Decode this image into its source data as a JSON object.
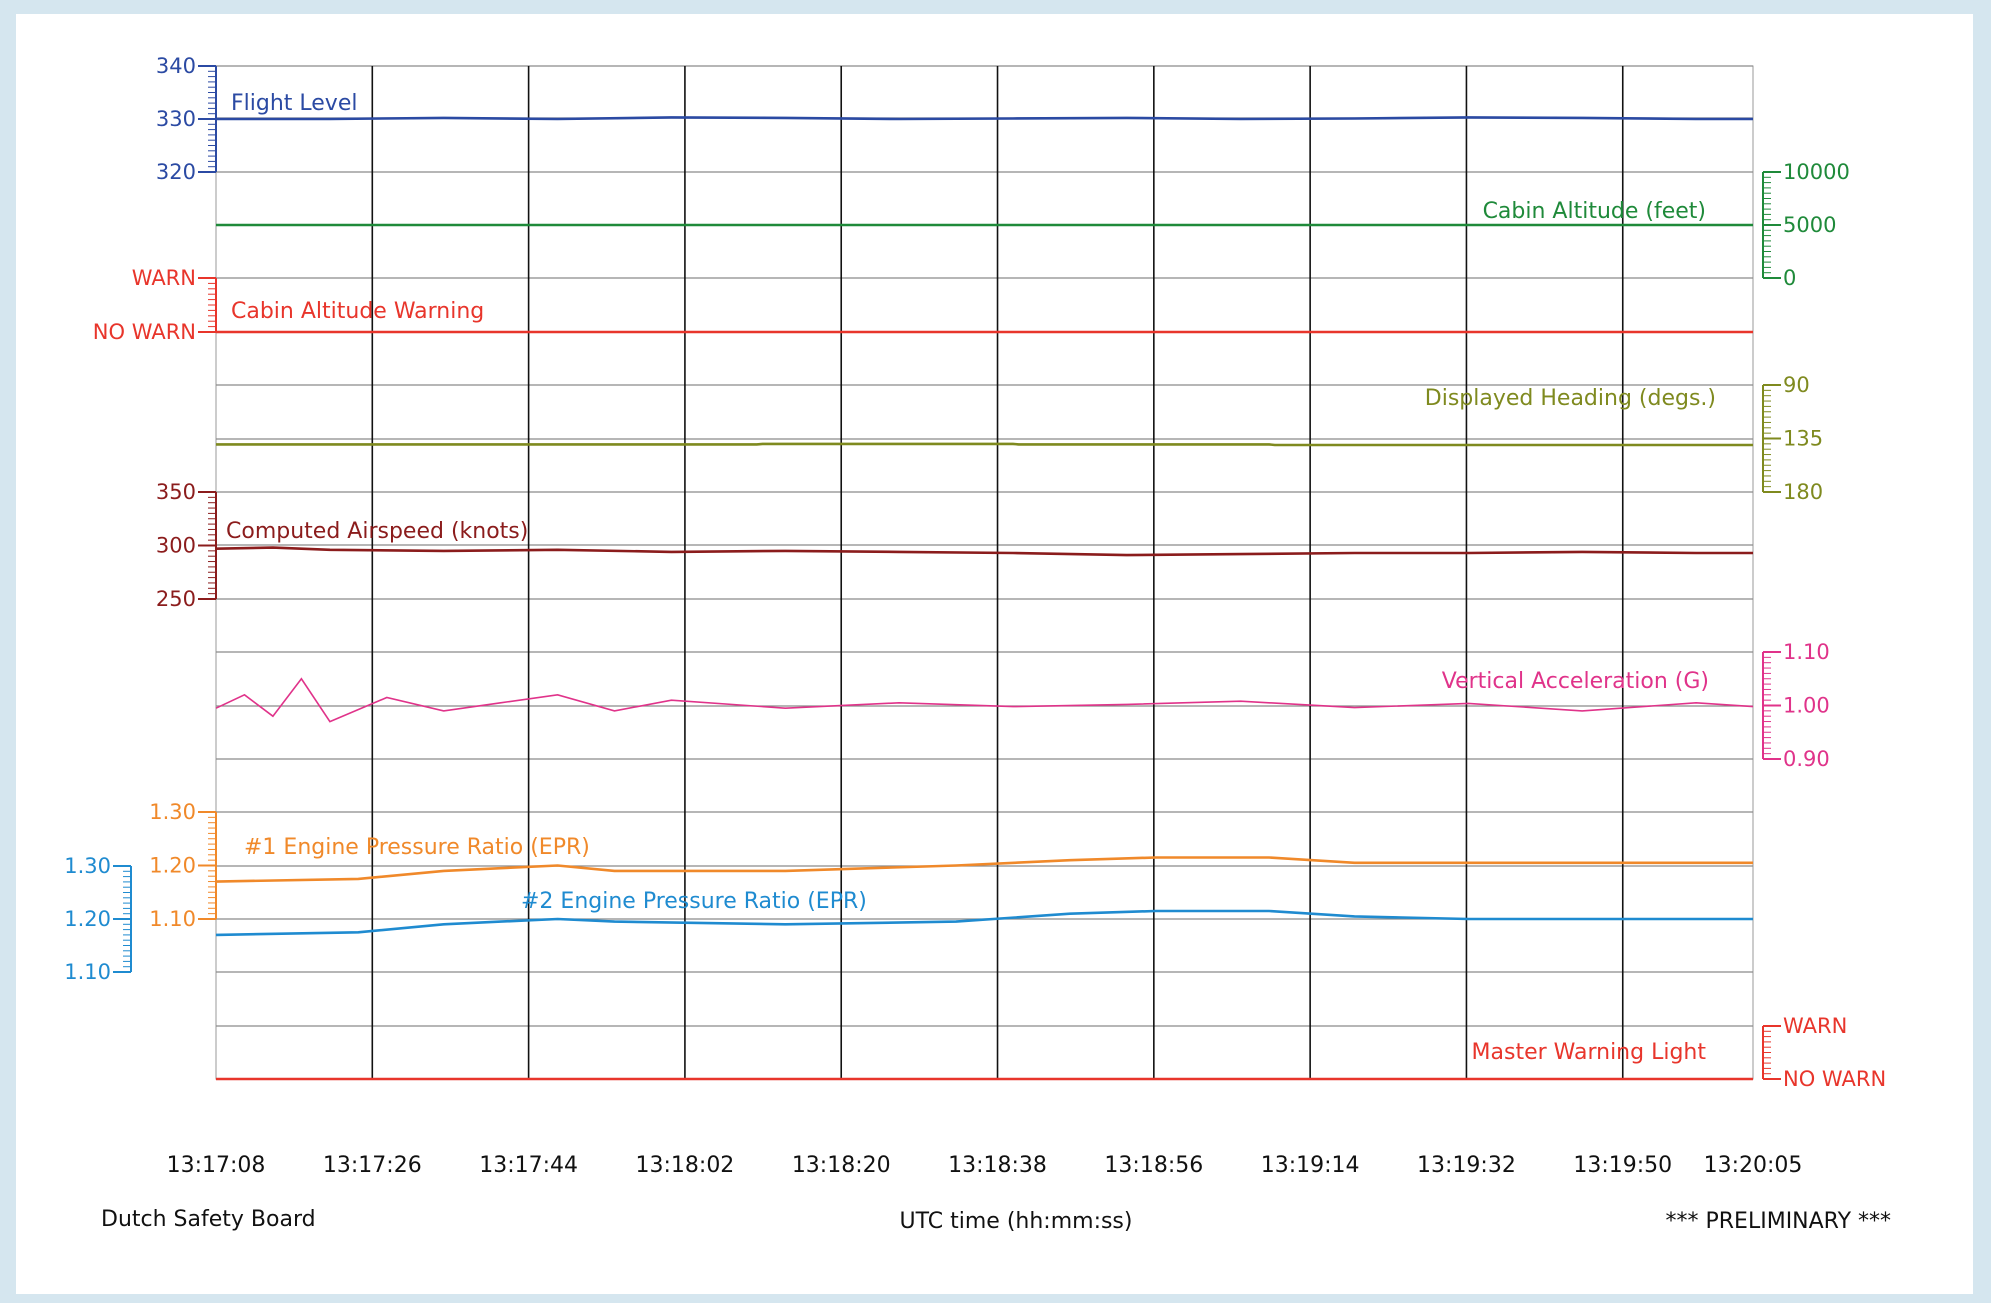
{
  "footer": {
    "left": "Dutch Safety Board",
    "center": "UTC time (hh:mm:ss)",
    "right": "*** PRELIMINARY ***"
  },
  "chart_data": {
    "type": "line",
    "grid": true,
    "x_ticks": [
      "13:17:08",
      "13:17:26",
      "13:17:44",
      "13:18:02",
      "13:18:20",
      "13:18:38",
      "13:18:56",
      "13:19:14",
      "13:19:32",
      "13:19:50",
      "13:20:05"
    ],
    "x_range": [
      "13:17:08",
      "13:20:05"
    ],
    "xlabel": "UTC time (hh:mm:ss)",
    "panels": [
      {
        "id": "flight-level",
        "label": "Flight Level",
        "color": "#2b4aa3",
        "axis_side": "left",
        "ticks": [
          "340",
          "330",
          "320"
        ],
        "range": [
          320,
          340
        ],
        "points": [
          [
            0,
            330
          ],
          [
            20,
            330
          ],
          [
            40,
            330.2
          ],
          [
            60,
            330
          ],
          [
            80,
            330.3
          ],
          [
            100,
            330.2
          ],
          [
            120,
            330
          ],
          [
            140,
            330.1
          ],
          [
            160,
            330.2
          ],
          [
            180,
            330
          ],
          [
            200,
            330.1
          ],
          [
            220,
            330.3
          ],
          [
            240,
            330.2
          ],
          [
            260,
            330
          ],
          [
            270,
            330
          ]
        ]
      },
      {
        "id": "cabin-altitude",
        "label": "Cabin Altitude (feet)",
        "color": "#1f8a3a",
        "axis_side": "right",
        "ticks": [
          "10000",
          "5000",
          "0"
        ],
        "range": [
          0,
          10000
        ],
        "points": [
          [
            0,
            5000
          ],
          [
            270,
            5000
          ]
        ]
      },
      {
        "id": "cabin-altitude-warning",
        "label": "Cabin Altitude Warning",
        "color": "#e8352b",
        "axis_side": "left",
        "ticks": [
          "WARN",
          "NO WARN"
        ],
        "range": [
          0,
          1
        ],
        "points": [
          [
            0,
            0
          ],
          [
            270,
            0
          ]
        ]
      },
      {
        "id": "displayed-heading",
        "label": "Displayed Heading (degs.)",
        "color": "#7f8a1f",
        "axis_side": "right",
        "ticks": [
          "90",
          "135",
          "180"
        ],
        "range": [
          90,
          180
        ],
        "inverted": true,
        "points": [
          [
            0,
            140
          ],
          [
            95,
            140
          ],
          [
            96,
            139.5
          ],
          [
            140,
            139.5
          ],
          [
            141,
            140
          ],
          [
            185,
            140
          ],
          [
            186,
            140.5
          ],
          [
            270,
            140.5
          ]
        ]
      },
      {
        "id": "computed-airspeed",
        "label": "Computed Airspeed (knots)",
        "color": "#8b1c1c",
        "axis_side": "left",
        "ticks": [
          "350",
          "300",
          "250"
        ],
        "range": [
          250,
          350
        ],
        "points": [
          [
            0,
            297
          ],
          [
            10,
            298
          ],
          [
            20,
            296
          ],
          [
            40,
            295
          ],
          [
            60,
            296
          ],
          [
            80,
            294
          ],
          [
            100,
            295
          ],
          [
            120,
            294
          ],
          [
            140,
            293
          ],
          [
            160,
            291
          ],
          [
            180,
            292
          ],
          [
            200,
            293
          ],
          [
            220,
            293
          ],
          [
            240,
            294
          ],
          [
            260,
            293
          ],
          [
            270,
            293
          ]
        ]
      },
      {
        "id": "vertical-acceleration",
        "label": "Vertical Acceleration (G)",
        "color": "#e0338a",
        "axis_side": "right",
        "ticks": [
          "1.10",
          "1.00",
          "0.90"
        ],
        "range": [
          0.9,
          1.1
        ],
        "points": [
          [
            0,
            0.995
          ],
          [
            5,
            1.02
          ],
          [
            10,
            0.98
          ],
          [
            15,
            1.05
          ],
          [
            20,
            0.97
          ],
          [
            30,
            1.015
          ],
          [
            40,
            0.99
          ],
          [
            50,
            1.005
          ],
          [
            60,
            1.02
          ],
          [
            70,
            0.99
          ],
          [
            80,
            1.01
          ],
          [
            100,
            0.995
          ],
          [
            120,
            1.005
          ],
          [
            140,
            0.998
          ],
          [
            160,
            1.002
          ],
          [
            180,
            1.008
          ],
          [
            200,
            0.996
          ],
          [
            220,
            1.004
          ],
          [
            240,
            0.99
          ],
          [
            260,
            1.005
          ],
          [
            270,
            0.998
          ]
        ]
      },
      {
        "id": "epr-1",
        "label": "#1 Engine Pressure Ratio (EPR)",
        "color": "#f0892a",
        "axis_side": "left",
        "ticks": [
          "1.30",
          "1.20",
          "1.10"
        ],
        "range": [
          1.1,
          1.3
        ],
        "points": [
          [
            0,
            1.17
          ],
          [
            25,
            1.175
          ],
          [
            40,
            1.19
          ],
          [
            50,
            1.195
          ],
          [
            60,
            1.2
          ],
          [
            70,
            1.19
          ],
          [
            100,
            1.19
          ],
          [
            130,
            1.2
          ],
          [
            150,
            1.21
          ],
          [
            165,
            1.215
          ],
          [
            185,
            1.215
          ],
          [
            200,
            1.205
          ],
          [
            220,
            1.205
          ],
          [
            240,
            1.205
          ],
          [
            270,
            1.205
          ]
        ]
      },
      {
        "id": "epr-2",
        "label": "#2 Engine Pressure Ratio (EPR)",
        "color": "#1f8bd0",
        "axis_side": "left",
        "ticks": [
          "1.30",
          "1.20",
          "1.10"
        ],
        "range": [
          1.1,
          1.3
        ],
        "points": [
          [
            0,
            1.17
          ],
          [
            25,
            1.175
          ],
          [
            40,
            1.19
          ],
          [
            50,
            1.195
          ],
          [
            60,
            1.2
          ],
          [
            70,
            1.195
          ],
          [
            100,
            1.19
          ],
          [
            130,
            1.195
          ],
          [
            150,
            1.21
          ],
          [
            165,
            1.215
          ],
          [
            185,
            1.215
          ],
          [
            200,
            1.205
          ],
          [
            220,
            1.2
          ],
          [
            240,
            1.2
          ],
          [
            270,
            1.2
          ]
        ]
      },
      {
        "id": "master-warning-light",
        "label": "Master Warning Light",
        "color": "#e8352b",
        "axis_side": "right",
        "ticks": [
          "WARN",
          "NO WARN"
        ],
        "range": [
          0,
          1
        ],
        "points": [
          [
            0,
            0
          ],
          [
            270,
            0
          ]
        ]
      }
    ]
  }
}
